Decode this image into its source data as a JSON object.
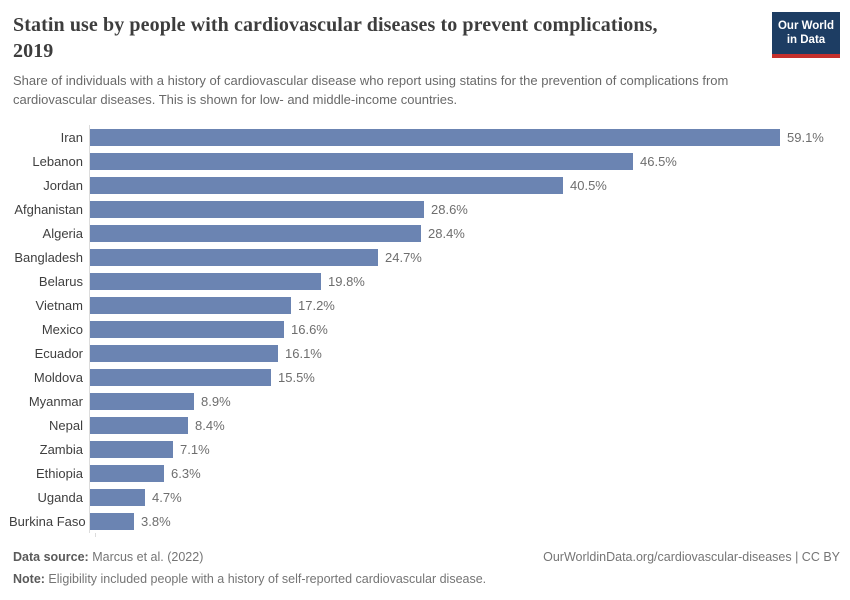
{
  "header": {
    "title": "Statin use by people with cardiovascular diseases to prevent complications, 2019",
    "subtitle": "Share of individuals with a history of cardiovascular disease who report using statins for the prevention of complications from cardiovascular diseases. This is shown for low- and middle-income countries."
  },
  "logo": {
    "line1": "Our World",
    "line2": "in Data"
  },
  "chart_data": {
    "type": "bar",
    "orientation": "horizontal",
    "title": "Statin use by people with cardiovascular diseases to prevent complications, 2019",
    "categories": [
      "Iran",
      "Lebanon",
      "Jordan",
      "Afghanistan",
      "Algeria",
      "Bangladesh",
      "Belarus",
      "Vietnam",
      "Mexico",
      "Ecuador",
      "Moldova",
      "Myanmar",
      "Nepal",
      "Zambia",
      "Ethiopia",
      "Uganda",
      "Burkina Faso"
    ],
    "values": [
      59.1,
      46.5,
      40.5,
      28.6,
      28.4,
      24.7,
      19.8,
      17.2,
      16.6,
      16.1,
      15.5,
      8.9,
      8.4,
      7.1,
      6.3,
      4.7,
      3.8
    ],
    "value_labels": [
      "59.1%",
      "46.5%",
      "40.5%",
      "28.6%",
      "28.4%",
      "24.7%",
      "19.8%",
      "17.2%",
      "16.6%",
      "16.1%",
      "15.5%",
      "8.9%",
      "8.4%",
      "7.1%",
      "6.3%",
      "4.7%",
      "3.8%"
    ],
    "unit": "%",
    "xlim": [
      0,
      60
    ],
    "grid": false,
    "legend": "none",
    "bar_color": "#6b84b2",
    "axis_color": "#dcdcdc"
  },
  "footer": {
    "data_source_label": "Data source:",
    "data_source_value": " Marcus et al. (2022)",
    "note_label": "Note:",
    "note_value": " Eligibility included people with a history of self-reported cardiovascular disease.",
    "link": "OurWorldinData.org/cardiovascular-diseases | CC BY"
  }
}
